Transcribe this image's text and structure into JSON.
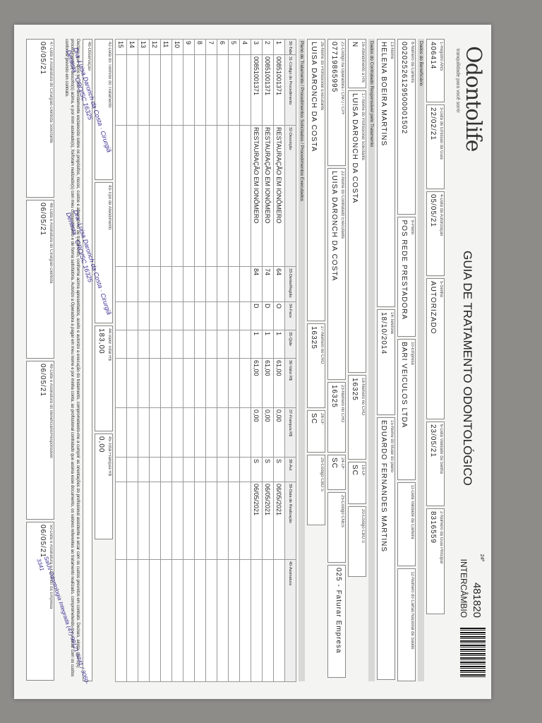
{
  "header": {
    "logo": "Odontolife",
    "tagline": "tranquilidade para você sorrir",
    "title": "GUIA DE TRATAMENTO ODONTOLÓGICO",
    "guide_number": "481820",
    "guide_type": "INTERCÂMBIO",
    "page_code": "24ª"
  },
  "sections": {
    "beneficiary": "Dados do Beneficiário",
    "contractor": "Dados do Contratado Responsável pelo Tratamento",
    "plan": "Plano de Tratamento / Procedimentos Solicitados / Procedimentos Executados"
  },
  "fields": {
    "ans": {
      "label": "1-Registro ANS",
      "value": "406414"
    },
    "emission": {
      "label": "3-Data de Emissão da Guia",
      "value": "22/02/21"
    },
    "auth_date": {
      "label": "4-Data da Autorização",
      "value": "05/05/21"
    },
    "password": {
      "label": "5-Senha",
      "value": "AUTORIZADO"
    },
    "validity": {
      "label": "6-Data Validade da Senha",
      "value": "23/05/21"
    },
    "main_guide": {
      "label": "2-Número da Guia Principal",
      "value": "8316559"
    },
    "card": {
      "label": "8-Número da Carteira",
      "value": "00202526129500001502"
    },
    "plan": {
      "label": "9-Plano",
      "value": "POS REDE PRESTADORA"
    },
    "company": {
      "label": "10-Empresa",
      "value": "BARI VEICULOS LTDA"
    },
    "card_validity": {
      "label": "11-Data Validade da Carteira"
    },
    "cns": {
      "label": "12-Número do Cartão Nacional de Saúde"
    },
    "beneficiary": {
      "label": "13-Nome",
      "value": "HELENA BOEIRA MARTINS"
    },
    "phone": {
      "label": "14-Telefone",
      "value": "18/10/2014"
    },
    "holder": {
      "label": "15-Nome do titular do plano",
      "value": "EDUARDO FERNANDES MARTINS"
    },
    "attendance": {
      "label": "16-Atendimento a RN",
      "value": "N"
    },
    "requester": {
      "label": "17-Nome do Profissional Solicitante",
      "value": "LUISA DARONCH DA COSTA"
    },
    "cro": {
      "label": "18-Número no CRO",
      "value": "16325"
    },
    "uf": {
      "label": "19-UF",
      "value": "SC"
    },
    "cbo": {
      "label": "20-Código CBO S"
    },
    "cpf": {
      "label": "21-Código na Operadora / CNPJ / CPF",
      "value": "07719865995"
    },
    "contractor": {
      "label": "22-Nome do Contratado Executante",
      "value": "LUISA DARONCH DA COSTA"
    },
    "cro2": {
      "label": "23-Número no CRO",
      "value": "16325"
    },
    "uf2": {
      "label": "24-UF",
      "value": "SC"
    },
    "cnes": {
      "label": "25-Código CNES"
    },
    "billing": {
      "value": "025 - Faturar Empresa"
    },
    "executor": {
      "label": "26-Nome do Profissional Executante",
      "value": "LUISA DARONCH DA COSTA"
    },
    "cro3": {
      "label": "27-Número no CRO",
      "value": "16325"
    },
    "uf3": {
      "label": "28-UF",
      "value": "SC"
    },
    "cbo3": {
      "label": "29-Código CBO S"
    }
  },
  "procedures": {
    "headers": [
      "30-Tabela",
      "31-Código do Procedimento",
      "32-Descrição",
      "33-Dente/Região",
      "34-Face",
      "35-Qtde",
      "36-Valor R$",
      "37-Franquia R$",
      "38-Aut",
      "39-Data de Realização",
      "40-Assinatura"
    ],
    "row_labels": [
      "1",
      "2",
      "3",
      "4",
      "5",
      "6",
      "7",
      "8",
      "9",
      "10",
      "11",
      "12",
      "13",
      "14",
      "15"
    ],
    "rows": [
      [
        "00851001371",
        "RESTAURAÇÃO EM IONÔMERO",
        "64",
        "O",
        "1",
        "61,00",
        "0,00",
        "S",
        "06/05/2021"
      ],
      [
        "00851001371",
        "RESTAURAÇÃO EM IONÔMERO",
        "74",
        "D",
        "1",
        "61,00",
        "0,00",
        "S",
        "06/05/2021"
      ],
      [
        "00851001371",
        "RESTAURAÇÃO EM IONÔMERO",
        "84",
        "D",
        "1",
        "61,00",
        "0,00",
        "S",
        "06/05/2021"
      ]
    ]
  },
  "totals": {
    "exam_date": {
      "label": "42-Data do Término do Tratamento"
    },
    "type": {
      "label": "43-Tipo de Atendimento"
    },
    "total": {
      "label": "44-Valor Total R$",
      "value": "183,00"
    },
    "franchise": {
      "label": "45-Total Franquia R$",
      "value": "0,00"
    }
  },
  "observation": "46-Observação",
  "declaration": "Declaro, que após ter sido devidamente esclarecido sobre os propósitos, riscos, custos e alternativas de tratamento, conforme acima apresentados, aceito e autorizo a execução do tratamento, comprometendo-me a cumprir as orientações do profissional assistente e arcar com os custos previstos em contrato. Declaro, ainda, que o(s) procedimento(s) descrito(s) acima, e por mim assinado(s), foi/foram realizado(s) com meu consentimento e de forma satisfatória. Autorizo a Operadora a pagar em meu nome e por minha conta, ao profissional contratado que assina esse documento, os valores referentes ao tratamento realizado, comprometendo-me a arcar com os custos conforme previsto em contrato.",
  "signatures": [
    {
      "label": "47-Data e Assinatura do Cirurgião-Dentista Solicitante",
      "date": "06/05/21"
    },
    {
      "label": "48-Data e Assinatura do Cirurgião-Dentista",
      "date": "06/05/21"
    },
    {
      "label": "49-Data e Assinatura do Beneficiário/Responsável",
      "date": "06/05/21"
    },
    {
      "label": "50-Data e Assinatura e Carimbo da Empresa",
      "date": "06/05/21"
    }
  ],
  "stamps": {
    "dentist": "Dra. Luisa Daronch da Costa · Cirurgiã Dentista · CRO/SC 16325",
    "clinic": "Salus Odontologia Integrada (47) 99121-3341 / 3060-3341"
  }
}
